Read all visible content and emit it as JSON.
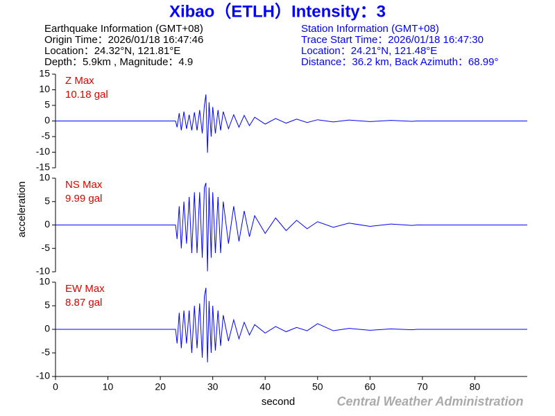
{
  "header": {
    "title": "Xibao（ETLH）Intensity：3",
    "earthquake": [
      "Earthquake Information  (GMT+08)",
      "Origin Time：2026/01/18 16:47:46",
      "Location：24.32°N, 121.81°E",
      "Depth：5.9km , Magnitude：4.9"
    ],
    "station": [
      "Station Information  (GMT+08)",
      "Trace Start Time：2026/01/18 16:47:30",
      "Location：24.21°N, 121.48°E",
      "Distance：36.2 km, Back Azimuth：68.99°"
    ]
  },
  "ylabel": "acceleration",
  "credit": "Central Weather Administration",
  "chart_data": [
    {
      "type": "line",
      "title": "Z Max",
      "subtitle": "10.18 gal",
      "x": [
        0,
        22.9,
        23.2,
        23.6,
        24,
        24.5,
        25,
        25.5,
        26,
        26.5,
        27,
        27.5,
        28,
        28.4,
        28.7,
        29,
        29.3,
        29.7,
        30,
        30.5,
        31,
        31.5,
        32,
        33,
        34,
        35,
        36,
        37,
        38,
        40,
        42,
        44,
        46,
        48,
        50,
        53,
        56,
        60,
        64,
        68,
        69,
        90
      ],
      "series": [
        {
          "color": "#0000ff",
          "values": [
            0,
            0,
            -2,
            2.5,
            -3,
            3,
            -2.5,
            2,
            -3,
            2.8,
            -3,
            3.5,
            -4,
            5,
            8.5,
            -10.2,
            6,
            -5,
            4.5,
            -4,
            3.5,
            -3,
            3,
            -2.5,
            2,
            -2,
            1.8,
            -1.5,
            1.2,
            -1,
            0.8,
            -0.7,
            0.6,
            -0.5,
            0.4,
            -0.3,
            0.3,
            -0.2,
            0.2,
            -0.1,
            0,
            0
          ]
        }
      ],
      "xlim": [
        0,
        90
      ],
      "ylim": [
        -15,
        15
      ],
      "yticks": [
        15,
        10,
        5,
        0,
        -5,
        -10,
        -15
      ]
    },
    {
      "type": "line",
      "title": "NS Max",
      "subtitle": "9.99 gal",
      "x": [
        0,
        22.9,
        23.2,
        23.6,
        24,
        24.5,
        25,
        25.5,
        26,
        26.5,
        27,
        27.5,
        28,
        28.4,
        28.7,
        29,
        29.3,
        29.7,
        30,
        30.5,
        31,
        31.5,
        32,
        33,
        34,
        35,
        36,
        37,
        38,
        40,
        42,
        44,
        46,
        48,
        50,
        53,
        56,
        60,
        64,
        68,
        69,
        90
      ],
      "series": [
        {
          "color": "#0000ff",
          "values": [
            0,
            0,
            -3,
            4,
            -5,
            5,
            -4,
            6,
            -6,
            7,
            -6,
            7,
            -7,
            8,
            9,
            -9.9,
            8,
            -7,
            7,
            -6,
            6,
            -6,
            5,
            -4,
            4,
            -3.5,
            3,
            -2.5,
            2,
            -1.8,
            1.5,
            -1.2,
            1,
            -0.8,
            0.7,
            -0.5,
            0.4,
            -0.3,
            0.2,
            -0.1,
            0,
            0
          ]
        }
      ],
      "xlim": [
        0,
        90
      ],
      "ylim": [
        -10,
        10
      ],
      "yticks": [
        10,
        5,
        0,
        -5,
        -10
      ]
    },
    {
      "type": "line",
      "title": "EW Max",
      "subtitle": "8.87 gal",
      "x": [
        0,
        22.9,
        23.2,
        23.6,
        24,
        24.5,
        25,
        25.5,
        26,
        26.5,
        27,
        27.5,
        28,
        28.4,
        28.7,
        29,
        29.3,
        29.7,
        30,
        30.5,
        31,
        31.5,
        32,
        33,
        34,
        35,
        36,
        37,
        38,
        40,
        42,
        44,
        46,
        48,
        50,
        53,
        56,
        60,
        64,
        68,
        69,
        90
      ],
      "series": [
        {
          "color": "#0000ff",
          "values": [
            0,
            0,
            -3,
            3.5,
            -4,
            4,
            -3,
            4,
            -5,
            5,
            -4,
            5.5,
            -6,
            7,
            8.8,
            -7,
            6,
            -5,
            5,
            -4.5,
            4,
            -3.5,
            3,
            -2.5,
            2,
            -2,
            1.5,
            -1.2,
            1,
            -0.8,
            0.6,
            -0.5,
            0.4,
            -0.3,
            1.2,
            -0.3,
            0.2,
            -0.2,
            0.1,
            -0.1,
            0,
            0
          ]
        }
      ],
      "xlim": [
        0,
        90
      ],
      "ylim": [
        -10,
        10
      ],
      "yticks": [
        10,
        5,
        0,
        -5,
        -10
      ],
      "xticks": [
        0,
        10,
        20,
        30,
        40,
        50,
        60,
        70,
        80
      ],
      "xlabel": "second"
    }
  ]
}
